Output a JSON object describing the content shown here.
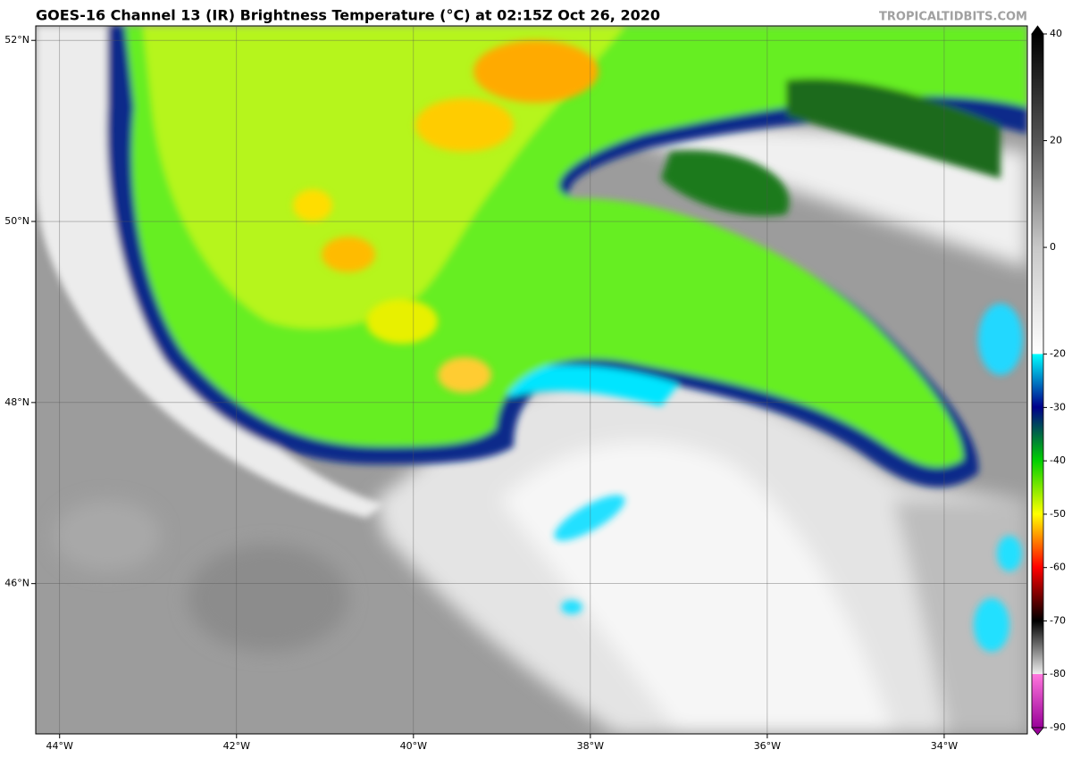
{
  "header": {
    "title": "GOES-16 Channel 13 (IR) Brightness Temperature (°C) at 02:15Z Oct 26, 2020",
    "source": "TROPICALTIDBITS.COM"
  },
  "map": {
    "lonlim": [
      -44.27,
      -33.06
    ],
    "latlim": [
      44.34,
      52.16
    ],
    "lon_ticks": [
      {
        "value": -44,
        "label": "44°W"
      },
      {
        "value": -42,
        "label": "42°W"
      },
      {
        "value": -40,
        "label": "40°W"
      },
      {
        "value": -38,
        "label": "38°W"
      },
      {
        "value": -36,
        "label": "36°W"
      },
      {
        "value": -34,
        "label": "34°W"
      }
    ],
    "lat_ticks": [
      {
        "value": 46,
        "label": "46°N"
      },
      {
        "value": 48,
        "label": "48°N"
      },
      {
        "value": 50,
        "label": "50°N"
      },
      {
        "value": 52,
        "label": "52°N"
      }
    ]
  },
  "colorbar": {
    "lim": [
      -90,
      40
    ],
    "ticks": [
      40,
      20,
      0,
      -20,
      -30,
      -40,
      -50,
      -60,
      -70,
      -80,
      -90
    ]
  }
}
